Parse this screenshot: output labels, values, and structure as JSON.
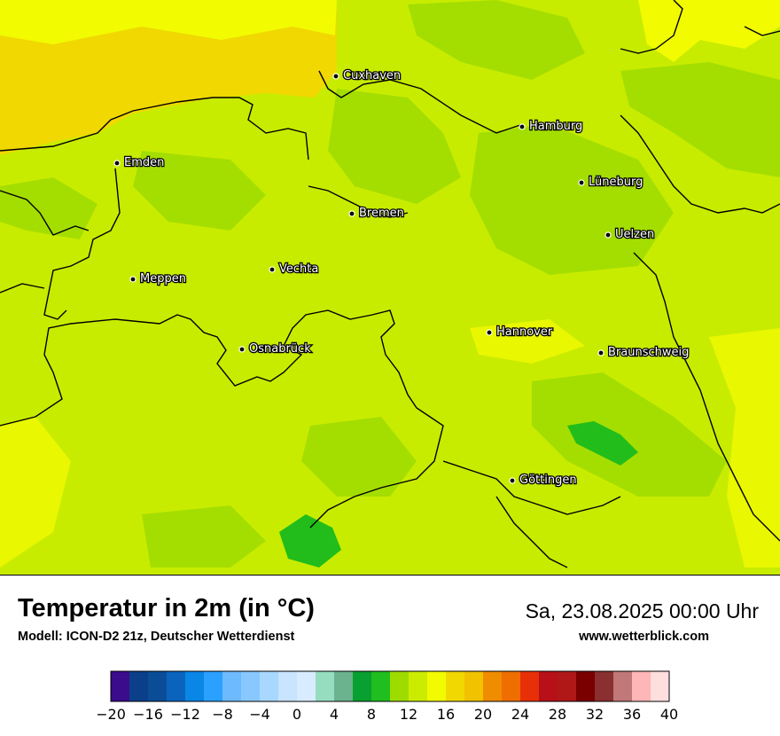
{
  "map": {
    "colors": {
      "land_base": "#c8ec00",
      "land_green": "#9edc00",
      "land_dark": "#22bd1a",
      "land_yellow": "#ecf800",
      "sea_warm": "#f0d800",
      "sea_yellow": "#f2fb00",
      "border": "#000000"
    },
    "cities": [
      {
        "id": "cuxhaven",
        "name": "Cuxhaven"
      },
      {
        "id": "hamburg",
        "name": "Hamburg"
      },
      {
        "id": "emden",
        "name": "Emden"
      },
      {
        "id": "lueneburg",
        "name": "Lüneburg"
      },
      {
        "id": "bremen",
        "name": "Bremen"
      },
      {
        "id": "uelzen",
        "name": "Uelzen"
      },
      {
        "id": "vechta",
        "name": "Vechta"
      },
      {
        "id": "meppen",
        "name": "Meppen"
      },
      {
        "id": "hannover",
        "name": "Hannover"
      },
      {
        "id": "osnabrueck",
        "name": "Osnabrück"
      },
      {
        "id": "braunschweig",
        "name": "Braunschweig"
      },
      {
        "id": "goettingen",
        "name": "Göttingen"
      }
    ]
  },
  "footer": {
    "title": "Temperatur in 2m (in °C)",
    "subtitle": "Modell: ICON-D2 21z, Deutscher Wetterdienst",
    "datetime": "Sa, 23.08.2025 00:00 Uhr",
    "website": "www.wetterblick.com"
  },
  "legend": {
    "min": -20,
    "max": 40,
    "step": 2,
    "tick_labels": [
      "−20",
      "−16",
      "−12",
      "−8",
      "−4",
      "0",
      "4",
      "8",
      "12",
      "16",
      "20",
      "24",
      "28",
      "32",
      "36",
      "40"
    ],
    "colors": [
      "#3b0c8c",
      "#0b3f8a",
      "#0a4d96",
      "#0a64be",
      "#0a86e6",
      "#2aa0ff",
      "#6ebaff",
      "#89c8ff",
      "#a8d8ff",
      "#c8e4ff",
      "#d8ecff",
      "#96ddc0",
      "#6bb38f",
      "#08a030",
      "#20be1e",
      "#9edc00",
      "#cbec00",
      "#f2fb00",
      "#f0d800",
      "#f0c200",
      "#f08c00",
      "#ef6e00",
      "#e83008",
      "#b81018",
      "#b01818",
      "#7a0000",
      "#8a3030",
      "#c07878",
      "#ffb6b6",
      "#ffdede"
    ]
  }
}
